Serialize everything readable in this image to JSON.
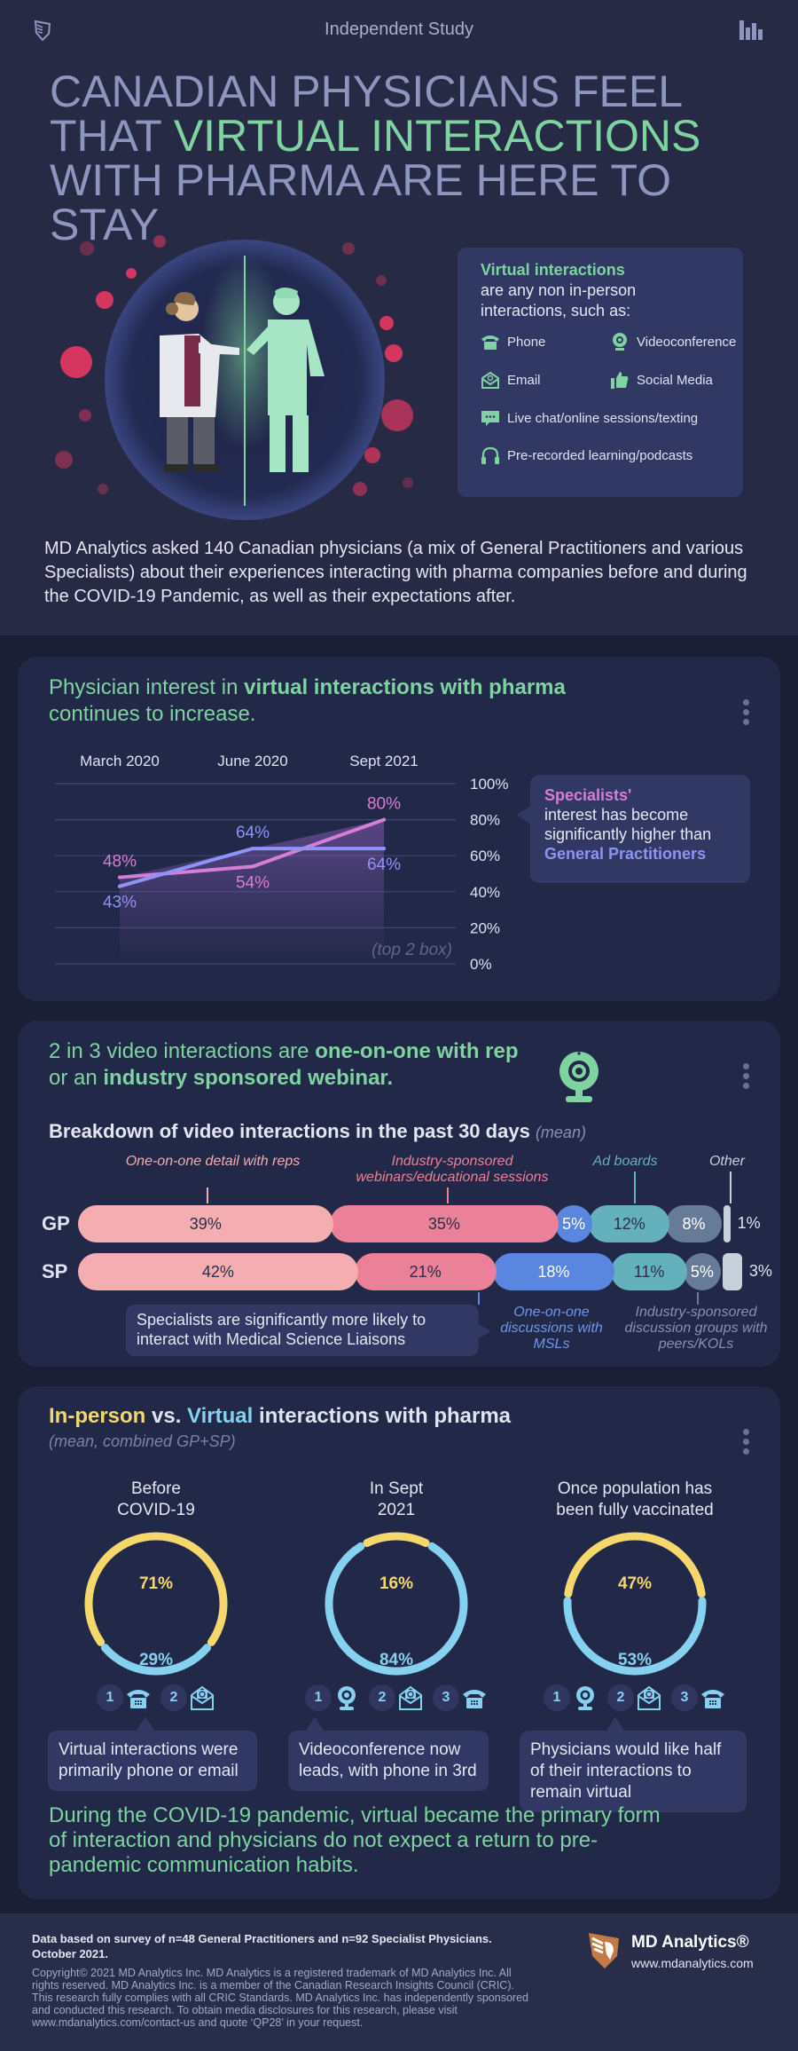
{
  "header": {
    "label": "Independent Study",
    "headline_pre": "CANADIAN PHYSICIANS FEEL THAT ",
    "headline_highlight": "VIRTUAL INTERACTIONS",
    "headline_post": " WITH PHARMA ARE HERE TO STAY"
  },
  "definition": {
    "title": "Virtual interactions",
    "subtitle": "are any non in-person interactions, such as:",
    "items": [
      {
        "label": "Phone",
        "icon": "phone-icon"
      },
      {
        "label": "Videoconference",
        "icon": "webcam-icon"
      },
      {
        "label": "Email",
        "icon": "email-icon"
      },
      {
        "label": "Social Media",
        "icon": "thumbs-up-icon"
      },
      {
        "label": "Live chat/online sessions/texting",
        "icon": "chat-icon"
      },
      {
        "label": "Pre-recorded learning/podcasts",
        "icon": "headphones-icon"
      }
    ]
  },
  "intro": "MD Analytics asked 140 Canadian physicians (a mix of General Practitioners and various Specialists) about their experiences interacting with pharma companies before and during the COVID-19 Pandemic, as well as their expectations after.",
  "section1": {
    "title_pre": "Physician interest in ",
    "title_bold": "virtual interactions with pharma",
    "title_post": " continues to increase.",
    "callout_sp": "Specialists'",
    "callout_mid": "interest has become significantly higher than",
    "callout_gp": "General Practitioners"
  },
  "chart_data": {
    "type": "line",
    "categories": [
      "March 2020",
      "June 2020",
      "Sept 2021"
    ],
    "series": [
      {
        "name": "Specialists",
        "values": [
          48,
          54,
          80
        ],
        "color": "#d57ed6"
      },
      {
        "name": "General Practitioners",
        "values": [
          43,
          64,
          64
        ],
        "color": "#8e94f5"
      }
    ],
    "ylim": [
      0,
      100
    ],
    "yticks": [
      "100%",
      "80%",
      "60%",
      "40%",
      "20%",
      "0%"
    ],
    "annotation": "(top 2 box)",
    "grid": true
  },
  "section2": {
    "title_pre": "2 in 3 video interactions are ",
    "title_bold1": "one-on-one with rep",
    "title_mid": " or an ",
    "title_bold2": "industry sponsored webinar.",
    "subtitle": "Breakdown of video interactions in the past 30 days",
    "subtitle_note": "(mean)",
    "labels_top": {
      "one_on_one": "One-on-one detail with reps",
      "industry": "Industry-sponsored webinars/educational sessions",
      "ad_boards": "Ad boards",
      "other": "Other"
    },
    "labels_bottom": {
      "msl": "One-on-one discussions with MSLs",
      "groups": "Industry-sponsored discussion groups with peers/KOLs"
    },
    "rows": [
      {
        "label": "GP",
        "values": [
          "39%",
          "35%",
          "5%",
          "12%",
          "8%",
          "1%"
        ],
        "numbers": [
          39,
          35,
          5,
          12,
          8,
          1
        ]
      },
      {
        "label": "SP",
        "values": [
          "42%",
          "21%",
          "18%",
          "11%",
          "5%",
          "3%"
        ],
        "numbers": [
          42,
          21,
          18,
          11,
          5,
          3
        ]
      }
    ],
    "callout": "Specialists are significantly more likely to interact with Medical Science Liaisons",
    "colors": [
      "#f4adb0",
      "#ea8198",
      "#5a86e0",
      "#64b0bd",
      "#667b98",
      "#c8d0dc"
    ]
  },
  "section3": {
    "title_inperson": "In-person",
    "title_vs": " vs. ",
    "title_virtual": "Virtual",
    "title_post": " interactions with pharma",
    "note": "(mean, combined GP+SP)",
    "columns": [
      {
        "title": "Before COVID-19",
        "in_person": 71,
        "virtual": 29,
        "in_person_label": "71%",
        "virtual_label": "29%",
        "ranks": [
          {
            "n": "1",
            "icon": "phone-icon"
          },
          {
            "n": "2",
            "icon": "email-icon"
          }
        ],
        "callout": "Virtual interactions were primarily phone or email"
      },
      {
        "title": "In Sept 2021",
        "in_person": 16,
        "virtual": 84,
        "in_person_label": "16%",
        "virtual_label": "84%",
        "ranks": [
          {
            "n": "1",
            "icon": "webcam-icon"
          },
          {
            "n": "2",
            "icon": "email-icon"
          },
          {
            "n": "3",
            "icon": "phone-icon"
          }
        ],
        "callout": "Videoconference now leads, with phone in 3rd"
      },
      {
        "title": "Once population has been fully vaccinated",
        "in_person": 47,
        "virtual": 53,
        "in_person_label": "47%",
        "virtual_label": "53%",
        "ranks": [
          {
            "n": "1",
            "icon": "webcam-icon"
          },
          {
            "n": "2",
            "icon": "email-icon"
          },
          {
            "n": "3",
            "icon": "phone-icon"
          }
        ],
        "callout": "Physicians would like half of their interactions to remain virtual"
      }
    ],
    "conclusion": "During the COVID-19 pandemic, virtual became the primary form of interaction and physicians do not expect a return to pre-pandemic communication habits.",
    "colors": {
      "in_person": "#f5d86b",
      "virtual": "#86d1f0"
    }
  },
  "footer": {
    "data_note": "Data based on survey of n=48 General Practitioners and n=92 Specialist Physicians. October 2021.",
    "copyright": "Copyright© 2021 MD Analytics Inc. MD Analytics is a registered trademark of MD Analytics Inc. All rights reserved. MD Analytics Inc. is a member of the Canadian Research Insights Council (CRIC). This research fully complies with all CRIC Standards. MD Analytics Inc. has independently sponsored and conducted this research. To obtain media disclosures for this research, please visit www.mdanalytics.com/contact-us and quote ‘QP28’ in your request.",
    "brand": "MD Analytics®",
    "url": "www.mdanalytics.com"
  }
}
